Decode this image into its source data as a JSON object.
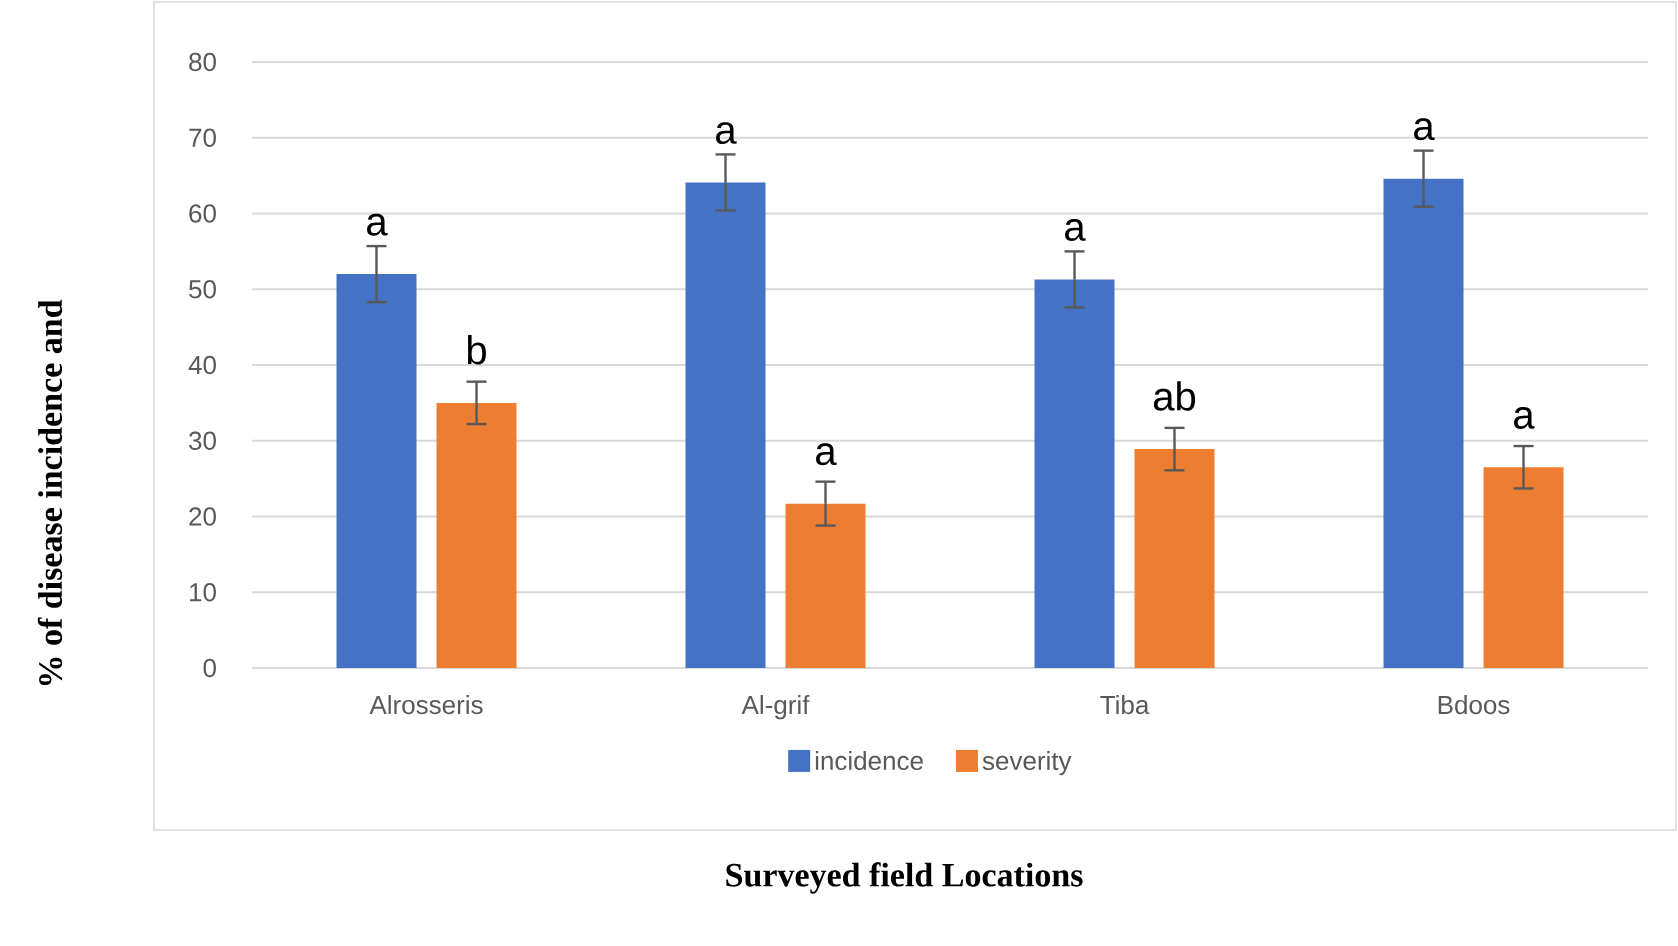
{
  "chart_data": {
    "type": "bar",
    "xlabel": "Surveyed field Locations",
    "ylabel": "% of disease incidence and",
    "categories": [
      "Alrosseris",
      "Al-grif",
      "Tiba",
      "Bdoos"
    ],
    "series": [
      {
        "name": "incidence",
        "color": "#4472c4",
        "values": [
          52,
          64.1,
          51.3,
          64.6
        ],
        "errors": [
          3.7,
          3.7,
          3.7,
          3.7
        ]
      },
      {
        "name": "severity",
        "color": "#ed7d31",
        "values": [
          35,
          21.7,
          28.9,
          26.5
        ],
        "errors": [
          2.8,
          2.9,
          2.8,
          2.8
        ]
      }
    ],
    "ylim": [
      0,
      80
    ],
    "yticks": [
      0,
      10,
      20,
      30,
      40,
      50,
      60,
      70,
      80
    ],
    "grid": "y",
    "legend": "bottom",
    "annotations": [
      "a",
      "b",
      "a",
      "a",
      "a",
      "ab",
      "a",
      "a"
    ]
  }
}
